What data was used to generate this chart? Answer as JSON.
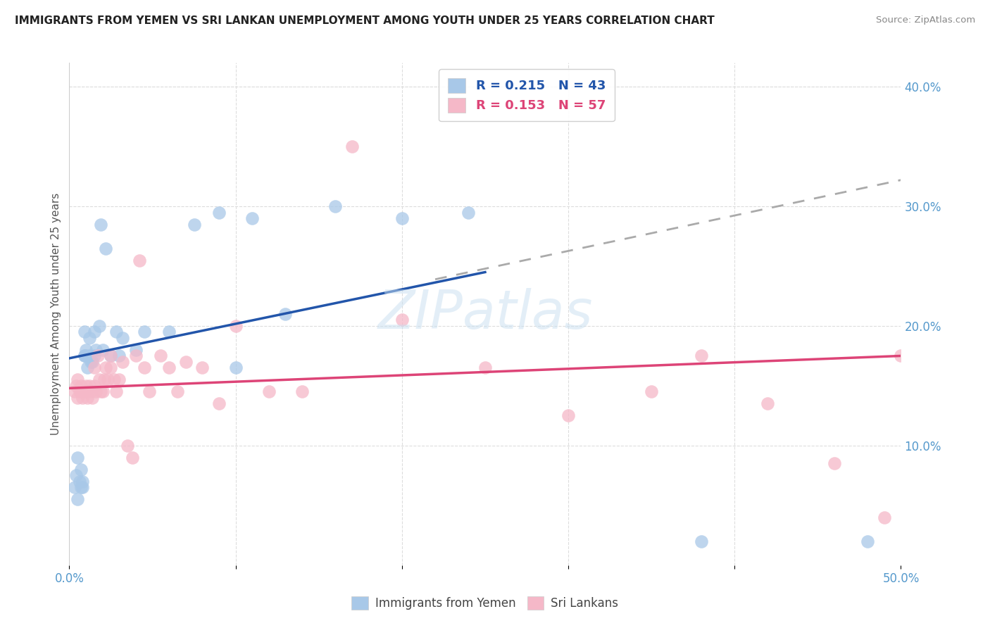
{
  "title": "IMMIGRANTS FROM YEMEN VS SRI LANKAN UNEMPLOYMENT AMONG YOUTH UNDER 25 YEARS CORRELATION CHART",
  "source": "Source: ZipAtlas.com",
  "ylabel": "Unemployment Among Youth under 25 years",
  "xlim": [
    0.0,
    0.5
  ],
  "ylim": [
    0.0,
    0.42
  ],
  "xticks": [
    0.0,
    0.1,
    0.2,
    0.3,
    0.4,
    0.5
  ],
  "xticklabels": [
    "0.0%",
    "",
    "",
    "",
    "",
    "50.0%"
  ],
  "yticks_right": [
    0.1,
    0.2,
    0.3,
    0.4
  ],
  "yticklabels_right": [
    "10.0%",
    "20.0%",
    "30.0%",
    "40.0%"
  ],
  "blue_color": "#a8c8e8",
  "pink_color": "#f5b8c8",
  "blue_line_color": "#2255aa",
  "pink_line_color": "#dd4477",
  "dashed_line_color": "#aaaaaa",
  "watermark_color": "#c8dff0",
  "grid_color": "#dddddd",
  "tick_color": "#5599cc",
  "blue_scatter_x": [
    0.003,
    0.004,
    0.005,
    0.005,
    0.006,
    0.007,
    0.007,
    0.008,
    0.008,
    0.009,
    0.009,
    0.009,
    0.01,
    0.01,
    0.011,
    0.012,
    0.012,
    0.013,
    0.014,
    0.015,
    0.015,
    0.016,
    0.018,
    0.019,
    0.02,
    0.022,
    0.025,
    0.028,
    0.03,
    0.032,
    0.04,
    0.045,
    0.06,
    0.075,
    0.09,
    0.1,
    0.11,
    0.13,
    0.16,
    0.2,
    0.24,
    0.38,
    0.48
  ],
  "blue_scatter_y": [
    0.065,
    0.075,
    0.055,
    0.09,
    0.07,
    0.065,
    0.08,
    0.065,
    0.07,
    0.175,
    0.175,
    0.195,
    0.175,
    0.18,
    0.165,
    0.19,
    0.175,
    0.17,
    0.17,
    0.175,
    0.195,
    0.18,
    0.2,
    0.285,
    0.18,
    0.265,
    0.175,
    0.195,
    0.175,
    0.19,
    0.18,
    0.195,
    0.195,
    0.285,
    0.295,
    0.165,
    0.29,
    0.21,
    0.3,
    0.29,
    0.295,
    0.02,
    0.02
  ],
  "pink_scatter_x": [
    0.003,
    0.004,
    0.005,
    0.005,
    0.006,
    0.007,
    0.007,
    0.008,
    0.008,
    0.009,
    0.01,
    0.01,
    0.011,
    0.012,
    0.013,
    0.014,
    0.015,
    0.015,
    0.016,
    0.017,
    0.018,
    0.019,
    0.02,
    0.021,
    0.022,
    0.023,
    0.025,
    0.025,
    0.027,
    0.028,
    0.03,
    0.032,
    0.035,
    0.038,
    0.04,
    0.042,
    0.045,
    0.048,
    0.055,
    0.06,
    0.065,
    0.07,
    0.08,
    0.09,
    0.1,
    0.12,
    0.14,
    0.17,
    0.2,
    0.25,
    0.3,
    0.35,
    0.38,
    0.42,
    0.46,
    0.49,
    0.5
  ],
  "pink_scatter_y": [
    0.145,
    0.15,
    0.14,
    0.155,
    0.145,
    0.145,
    0.15,
    0.145,
    0.14,
    0.145,
    0.15,
    0.145,
    0.14,
    0.15,
    0.145,
    0.14,
    0.15,
    0.165,
    0.145,
    0.175,
    0.155,
    0.145,
    0.145,
    0.155,
    0.165,
    0.155,
    0.165,
    0.175,
    0.155,
    0.145,
    0.155,
    0.17,
    0.1,
    0.09,
    0.175,
    0.255,
    0.165,
    0.145,
    0.175,
    0.165,
    0.145,
    0.17,
    0.165,
    0.135,
    0.2,
    0.145,
    0.145,
    0.35,
    0.205,
    0.165,
    0.125,
    0.145,
    0.175,
    0.135,
    0.085,
    0.04,
    0.175
  ],
  "blue_line_x0": 0.0,
  "blue_line_y0": 0.173,
  "blue_line_x1": 0.25,
  "blue_line_y1": 0.245,
  "dash_line_x0": 0.22,
  "dash_line_y0": 0.239,
  "dash_line_x1": 0.5,
  "dash_line_y1": 0.322,
  "pink_line_x0": 0.0,
  "pink_line_y0": 0.148,
  "pink_line_x1": 0.5,
  "pink_line_y1": 0.175
}
